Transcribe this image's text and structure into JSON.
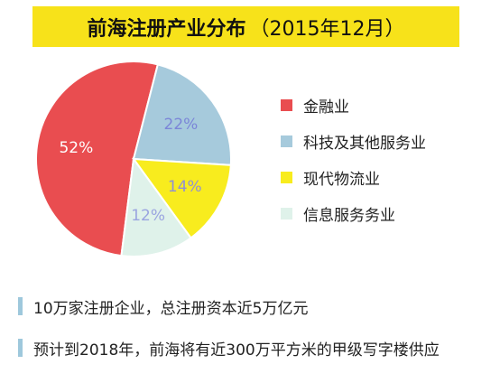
{
  "title": {
    "main": "前海注册产业分布",
    "sub": "（2015年12月）"
  },
  "chart_data": {
    "type": "pie",
    "title": "前海注册产业分布（2015年12月）",
    "slices": [
      {
        "label": "金融业",
        "value": 52,
        "display": "52%",
        "color": "#e94d50",
        "text_color": "#ffffff"
      },
      {
        "label": "科技及其他服务业",
        "value": 22,
        "display": "22%",
        "color": "#a6cadc",
        "text_color": "#7b86d8"
      },
      {
        "label": "现代物流业",
        "value": 14,
        "display": "14%",
        "color": "#f8ec1e",
        "text_color": "#8f8fd6"
      },
      {
        "label": "信息服务务业",
        "value": 12,
        "display": "12%",
        "color": "#dff2ea",
        "text_color": "#9aa4e0"
      }
    ],
    "legend_position": "right"
  },
  "notes": [
    "10万家注册企业，总注册资本近5万亿元",
    "预计到2018年，前海将有近300万平方米的甲级写字楼供应"
  ]
}
